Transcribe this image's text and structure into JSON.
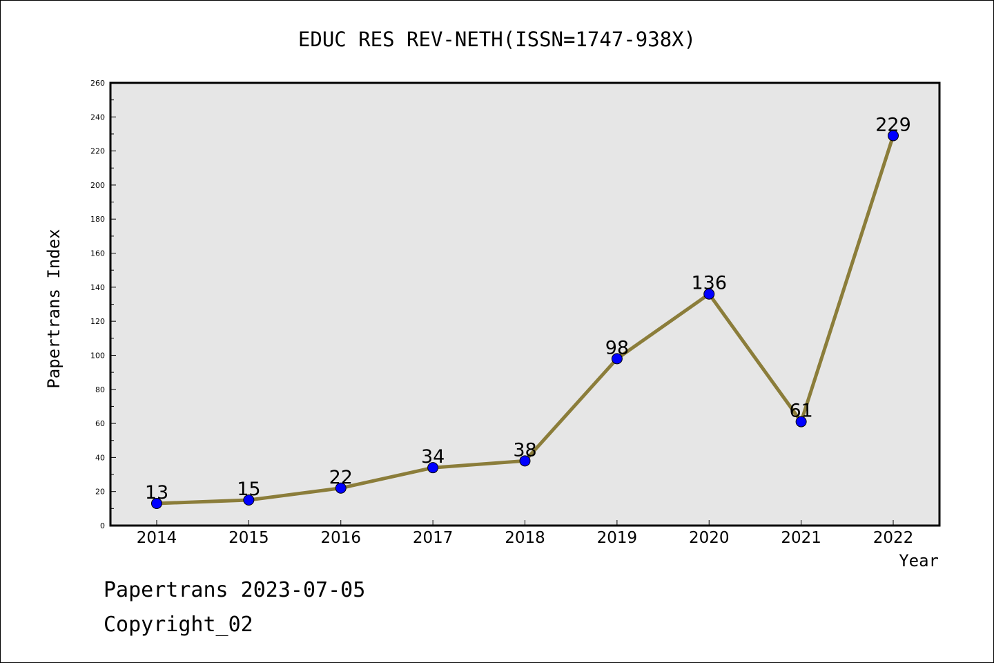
{
  "chart_data": {
    "type": "line",
    "title": "EDUC RES REV-NETH(ISSN=1747-938X)",
    "xlabel": "Year",
    "ylabel": "Papertrans Index",
    "x": [
      "2014",
      "2015",
      "2016",
      "2017",
      "2018",
      "2019",
      "2020",
      "2021",
      "2022"
    ],
    "series": [
      {
        "values": [
          13,
          15,
          22,
          34,
          38,
          98,
          136,
          61,
          229
        ]
      }
    ],
    "data_labels": [
      "13",
      "15",
      "22",
      "34",
      "38",
      "98",
      "136",
      "61",
      "229"
    ],
    "ylim": [
      0,
      260
    ],
    "yticks": [
      "0",
      "20",
      "40",
      "60",
      "80",
      "100",
      "120",
      "140",
      "160",
      "180",
      "200",
      "220",
      "240",
      "260"
    ],
    "grid": false,
    "plot_background": "#e6e6e6",
    "line_color": "#8b7d3a",
    "marker_color": "#0000ff"
  },
  "footer": {
    "source": "Papertrans 2023-07-05",
    "copyright": "Copyright_02"
  }
}
